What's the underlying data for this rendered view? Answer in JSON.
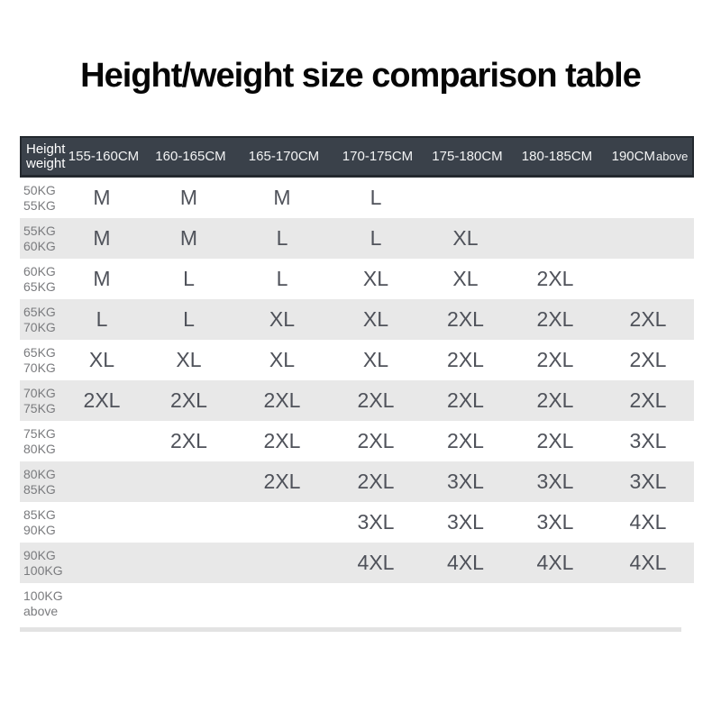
{
  "title": "Height/weight size comparison table",
  "chart_data": {
    "type": "table",
    "title": "Height/weight size comparison table",
    "corner": [
      "Height",
      "weight"
    ],
    "columns": [
      {
        "label": "155-160CM",
        "suffix": ""
      },
      {
        "label": "160-165CM",
        "suffix": ""
      },
      {
        "label": "165-170CM",
        "suffix": ""
      },
      {
        "label": "170-175CM",
        "suffix": ""
      },
      {
        "label": "175-180CM",
        "suffix": ""
      },
      {
        "label": "180-185CM",
        "suffix": ""
      },
      {
        "label": "190CM",
        "suffix": "above"
      }
    ],
    "rows": [
      {
        "weight": [
          "50KG",
          "55KG"
        ],
        "sizes": [
          "M",
          "M",
          "M",
          "L",
          "",
          "",
          ""
        ]
      },
      {
        "weight": [
          "55KG",
          "60KG"
        ],
        "sizes": [
          "M",
          "M",
          "L",
          "L",
          "XL",
          "",
          ""
        ]
      },
      {
        "weight": [
          "60KG",
          "65KG"
        ],
        "sizes": [
          "M",
          "L",
          "L",
          "XL",
          "XL",
          "2XL",
          ""
        ]
      },
      {
        "weight": [
          "65KG",
          "70KG"
        ],
        "sizes": [
          "L",
          "L",
          "XL",
          "XL",
          "2XL",
          "2XL",
          "2XL"
        ]
      },
      {
        "weight": [
          "65KG",
          "70KG"
        ],
        "sizes": [
          "XL",
          "XL",
          "XL",
          "XL",
          "2XL",
          "2XL",
          "2XL"
        ]
      },
      {
        "weight": [
          "70KG",
          "75KG"
        ],
        "sizes": [
          "2XL",
          "2XL",
          "2XL",
          "2XL",
          "2XL",
          "2XL",
          "2XL"
        ]
      },
      {
        "weight": [
          "75KG",
          "80KG"
        ],
        "sizes": [
          "",
          "2XL",
          "2XL",
          "2XL",
          "2XL",
          "2XL",
          "3XL"
        ]
      },
      {
        "weight": [
          "80KG",
          "85KG"
        ],
        "sizes": [
          "",
          "",
          "2XL",
          "2XL",
          "3XL",
          "3XL",
          "3XL"
        ]
      },
      {
        "weight": [
          "85KG",
          "90KG"
        ],
        "sizes": [
          "",
          "",
          "",
          "3XL",
          "3XL",
          "3XL",
          "4XL"
        ]
      },
      {
        "weight": [
          "90KG",
          "100KG"
        ],
        "sizes": [
          "",
          "",
          "",
          "4XL",
          "4XL",
          "4XL",
          "4XL"
        ]
      },
      {
        "weight": [
          "100KG",
          "above"
        ],
        "sizes": [
          "",
          "",
          "",
          "",
          "",
          "",
          ""
        ]
      }
    ],
    "layout": {
      "shaded_rows": "every second row starting with row 2",
      "grid": "off"
    }
  },
  "colors": {
    "header_bg": "#3a414a",
    "header_border": "#23282e",
    "header_text": "#f2f3f4",
    "shaded_row": "#e8e8e8",
    "label_text": "#7a7b7e",
    "size_text": "#4f525a",
    "divider": "#e3e3e3",
    "title_color": "#060606",
    "page_bg": "#ffffff"
  }
}
